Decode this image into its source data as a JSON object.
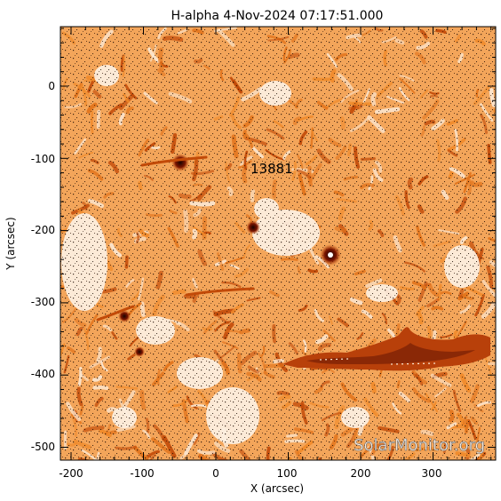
{
  "title": "H-alpha   4-Nov-2024  07:17:51.000",
  "x_axis": {
    "label": "X (arcsec)",
    "ticks": [
      "-200",
      "-100",
      "0",
      "100",
      "200",
      "300"
    ]
  },
  "y_axis": {
    "label": "Y (arcsec)",
    "ticks": [
      "0",
      "-100",
      "-200",
      "-300",
      "-400",
      "-500"
    ]
  },
  "annotations": {
    "region_label": "13881"
  },
  "watermark": "SolarMonitor.org",
  "colors": {
    "background": "#ffffff",
    "plasma_light": "#fbe6d0",
    "plasma_mid": "#f08a2a",
    "plasma_dark": "#c24a08",
    "core_dark": "#5a0c00",
    "speckle": "#1a0a02"
  }
}
